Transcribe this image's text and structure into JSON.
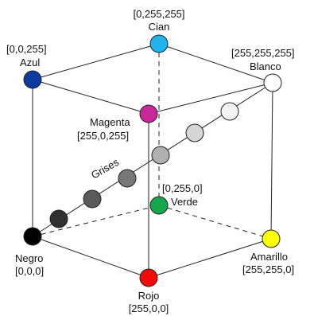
{
  "colors": {
    "edge": "#222222",
    "cian": "#1fb2ee",
    "azul": "#0d3a9e",
    "magenta": "#c8289a",
    "blanco": "#ffffff",
    "verde": "#13a84b",
    "negro": "#000000",
    "rojo": "#f20a0a",
    "amarillo": "#ffff00",
    "gris_1": "#303030",
    "gris_2": "#5a5a5a",
    "gris_3": "#787878",
    "gris_4": "#b0b0b0",
    "gris_5": "#d6d6d6",
    "gris_6": "#f3f3f3"
  },
  "labels": {
    "cian_value": "[0,255,255]",
    "cian_name": "Cian",
    "azul_value": "[0,0,255]",
    "azul_name": "Azul",
    "blanco_value": "[255,255,255]",
    "blanco_name": "Blanco",
    "magenta_name": "Magenta",
    "magenta_value": "[255,0,255]",
    "grises": "Grises",
    "verde_value": "[0,255,0]",
    "verde_name": "Verde",
    "negro_name": "Negro",
    "negro_value": "[0,0,0]",
    "amarillo_name": "Amarillo",
    "amarillo_value": "[255,255,0]",
    "rojo_name": "Rojo",
    "rojo_value": "[255,0,0]"
  }
}
